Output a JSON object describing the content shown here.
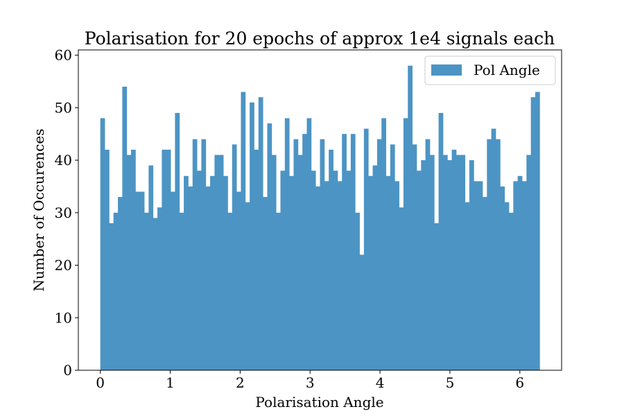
{
  "chart_data": {
    "type": "bar",
    "title": "Polarisation for 20 epochs of approx 1e4 signals each",
    "xlabel": "Polarisation Angle",
    "ylabel": "Number of Occurences",
    "xlim": [
      -0.314,
      6.597
    ],
    "ylim": [
      0,
      61
    ],
    "grid": false,
    "legend_position": "top-right",
    "bar_color": "#4c94c4",
    "bin_range": [
      0,
      6.283
    ],
    "series": [
      {
        "name": "Pol Angle",
        "values": [
          48,
          42,
          28,
          30,
          33,
          54,
          41,
          42,
          34,
          34,
          30,
          39,
          29,
          31,
          42,
          42,
          34,
          49,
          30,
          37,
          35,
          44,
          38,
          44,
          35,
          37,
          41,
          41,
          37,
          30,
          43,
          34,
          53,
          32,
          51,
          42,
          52,
          33,
          47,
          41,
          30,
          38,
          48,
          37,
          44,
          41,
          45,
          48,
          38,
          35,
          44,
          36,
          42,
          38,
          36,
          45,
          38,
          45,
          30,
          22,
          46,
          37,
          39,
          44,
          48,
          37,
          43,
          36,
          31,
          48,
          58,
          43,
          38,
          40,
          44,
          41,
          28,
          49,
          41,
          40,
          42,
          41,
          41,
          32,
          40,
          36,
          36,
          33,
          44,
          46,
          44,
          35,
          32,
          30,
          36,
          37,
          36,
          41,
          52,
          53
        ]
      }
    ],
    "x_ticks": [
      {
        "value": 0,
        "label": "0"
      },
      {
        "value": 1,
        "label": "1"
      },
      {
        "value": 2,
        "label": "2"
      },
      {
        "value": 3,
        "label": "3"
      },
      {
        "value": 4,
        "label": "4"
      },
      {
        "value": 5,
        "label": "5"
      },
      {
        "value": 6,
        "label": "6"
      }
    ],
    "y_ticks": [
      {
        "value": 0,
        "label": "0"
      },
      {
        "value": 10,
        "label": "10"
      },
      {
        "value": 20,
        "label": "20"
      },
      {
        "value": 30,
        "label": "30"
      },
      {
        "value": 40,
        "label": "40"
      },
      {
        "value": 50,
        "label": "50"
      },
      {
        "value": 60,
        "label": "60"
      }
    ]
  }
}
